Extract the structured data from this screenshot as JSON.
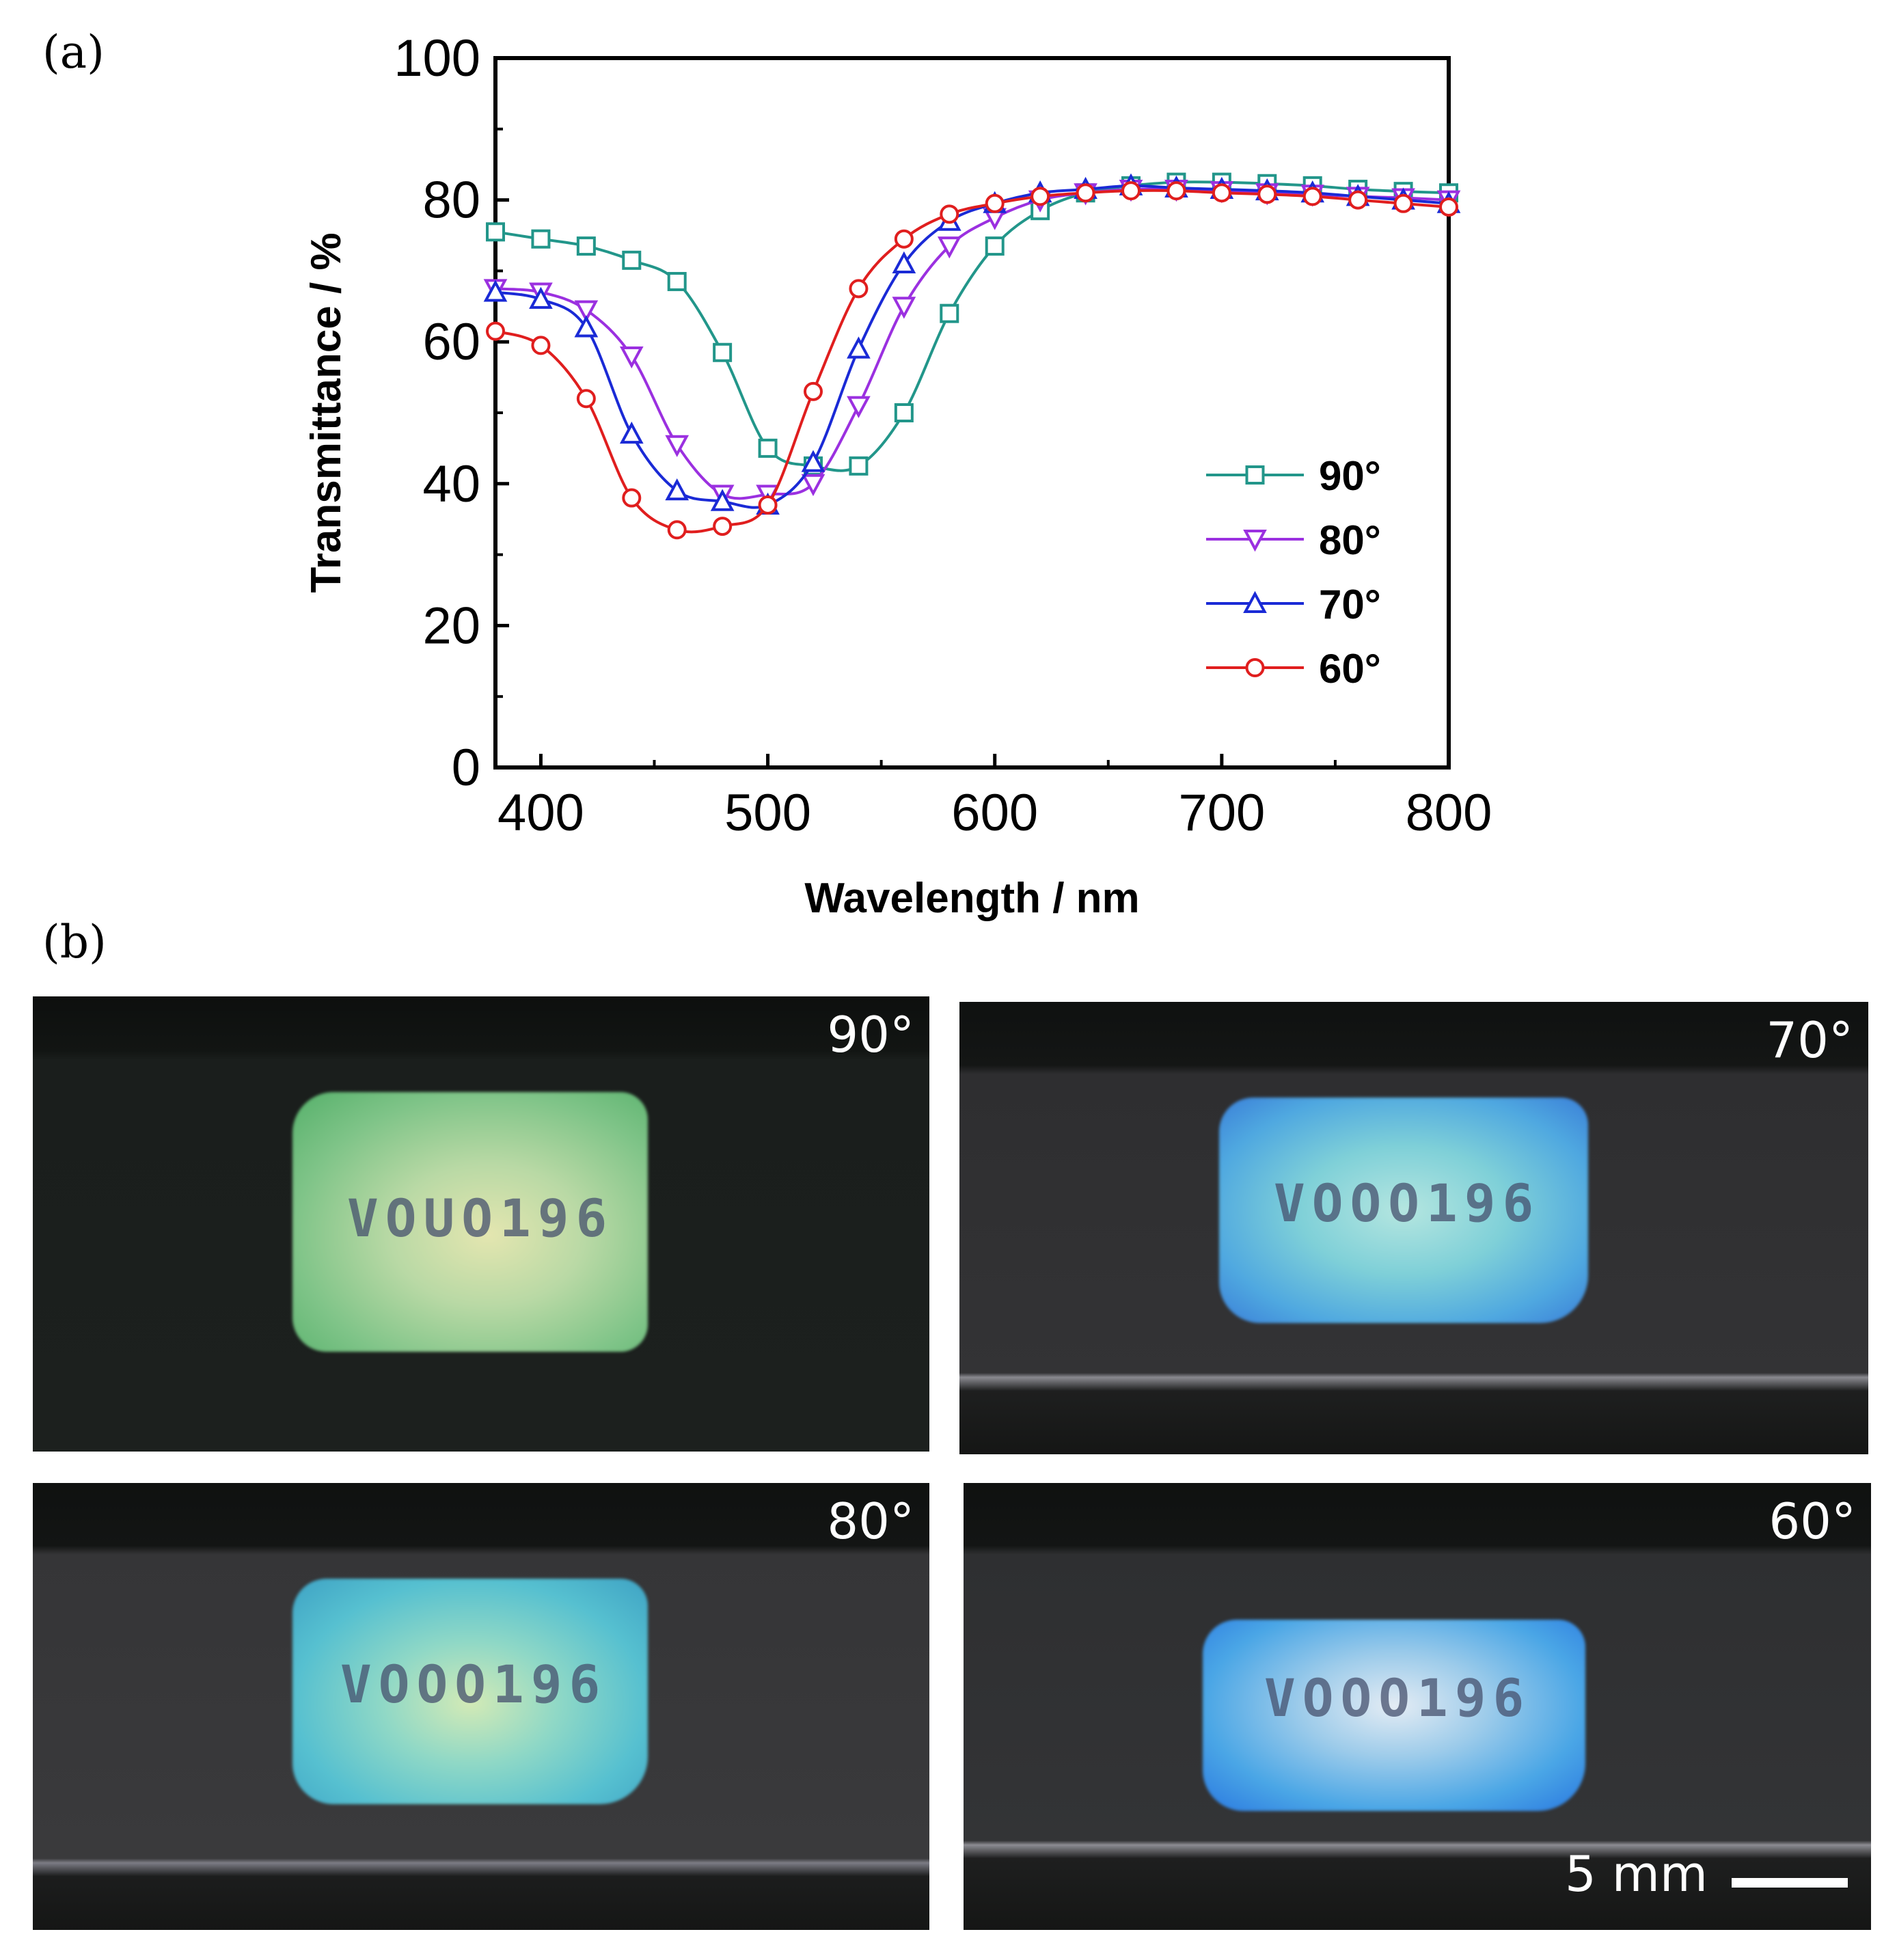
{
  "panel_a_label": "(a)",
  "panel_b_label": "(b)",
  "chart_data": {
    "type": "line",
    "xlabel": "Wavelength / nm",
    "ylabel": "Transmittance / %",
    "xlim": [
      380,
      800
    ],
    "ylim": [
      0,
      100
    ],
    "xticks": [
      400,
      500,
      600,
      700,
      800
    ],
    "yticks": [
      0,
      20,
      40,
      60,
      80,
      100
    ],
    "grid": false,
    "legend_position": "bottom-right",
    "series": [
      {
        "name": "90°",
        "color": "#22968a",
        "marker": "square",
        "x": [
          380,
          400,
          420,
          440,
          460,
          480,
          500,
          520,
          540,
          560,
          580,
          600,
          620,
          640,
          660,
          680,
          700,
          720,
          740,
          760,
          780,
          800
        ],
        "y": [
          75.5,
          74.5,
          73.5,
          71.5,
          68.5,
          58.5,
          45,
          42.5,
          42.5,
          50,
          64,
          73.5,
          78.5,
          81,
          82,
          82.5,
          82.5,
          82.3,
          82,
          81.5,
          81.2,
          81
        ]
      },
      {
        "name": "80°",
        "color": "#9b30e0",
        "marker": "triangle-down",
        "x": [
          380,
          400,
          420,
          440,
          460,
          480,
          500,
          520,
          540,
          560,
          580,
          600,
          620,
          640,
          660,
          680,
          700,
          720,
          740,
          760,
          780,
          800
        ],
        "y": [
          67.5,
          67,
          64.5,
          58,
          45.5,
          38.5,
          38.5,
          40,
          51,
          65,
          73.5,
          77.5,
          80,
          81,
          81.5,
          81.5,
          81.3,
          81,
          80.8,
          80.5,
          80.3,
          80
        ]
      },
      {
        "name": "70°",
        "color": "#1a2ad6",
        "marker": "triangle-up",
        "x": [
          380,
          400,
          420,
          440,
          460,
          480,
          500,
          520,
          540,
          560,
          580,
          600,
          620,
          640,
          660,
          680,
          700,
          720,
          740,
          760,
          780,
          800
        ],
        "y": [
          67,
          66,
          62,
          47,
          39,
          37.5,
          37,
          43,
          59,
          71,
          77,
          79.5,
          81,
          81.5,
          82,
          81.7,
          81.5,
          81.3,
          81,
          80.5,
          80,
          79.5
        ]
      },
      {
        "name": "60°",
        "color": "#e01e1e",
        "marker": "circle",
        "x": [
          380,
          400,
          420,
          440,
          460,
          480,
          500,
          520,
          540,
          560,
          580,
          600,
          620,
          640,
          660,
          680,
          700,
          720,
          740,
          760,
          780,
          800
        ],
        "y": [
          61.5,
          59.5,
          52,
          38,
          33.5,
          34,
          37,
          53,
          67.5,
          74.5,
          78,
          79.5,
          80.5,
          81,
          81.3,
          81.3,
          81,
          80.8,
          80.5,
          80,
          79.5,
          79
        ]
      }
    ]
  },
  "photos": [
    {
      "angle": "90°"
    },
    {
      "angle": "70°"
    },
    {
      "angle": "80°"
    },
    {
      "angle": "60°"
    }
  ],
  "scale_label": "5 mm"
}
